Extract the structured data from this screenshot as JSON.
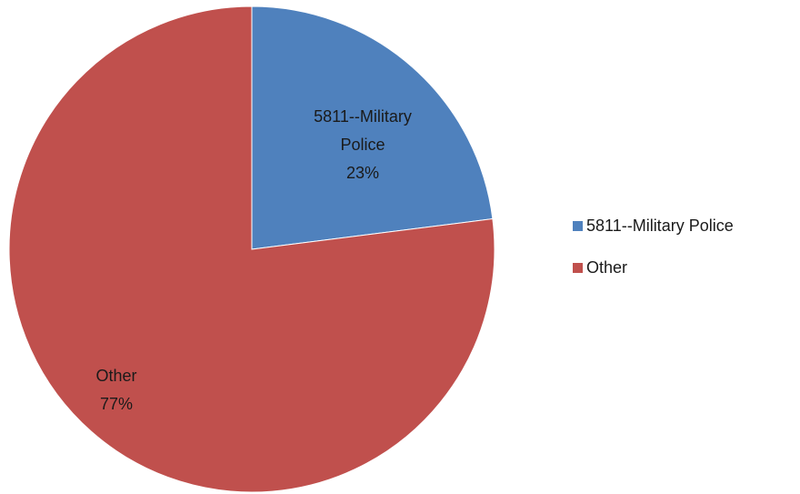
{
  "chart_data": {
    "type": "pie",
    "title": "",
    "categories": [
      "5811--Military Police",
      "Other"
    ],
    "values": [
      23,
      77
    ],
    "slices": [
      {
        "label": "5811--Military Police",
        "data_label_lines": [
          "5811--Military",
          "Police",
          "23%"
        ],
        "value": 23,
        "percent": "23%",
        "color": "#4f81bd"
      },
      {
        "label": "Other",
        "data_label_lines": [
          "Other",
          "77%"
        ],
        "value": 77,
        "percent": "77%",
        "color": "#c0504d"
      }
    ],
    "legend": {
      "position": "right",
      "items": [
        "5811--Military Police",
        "Other"
      ]
    }
  }
}
